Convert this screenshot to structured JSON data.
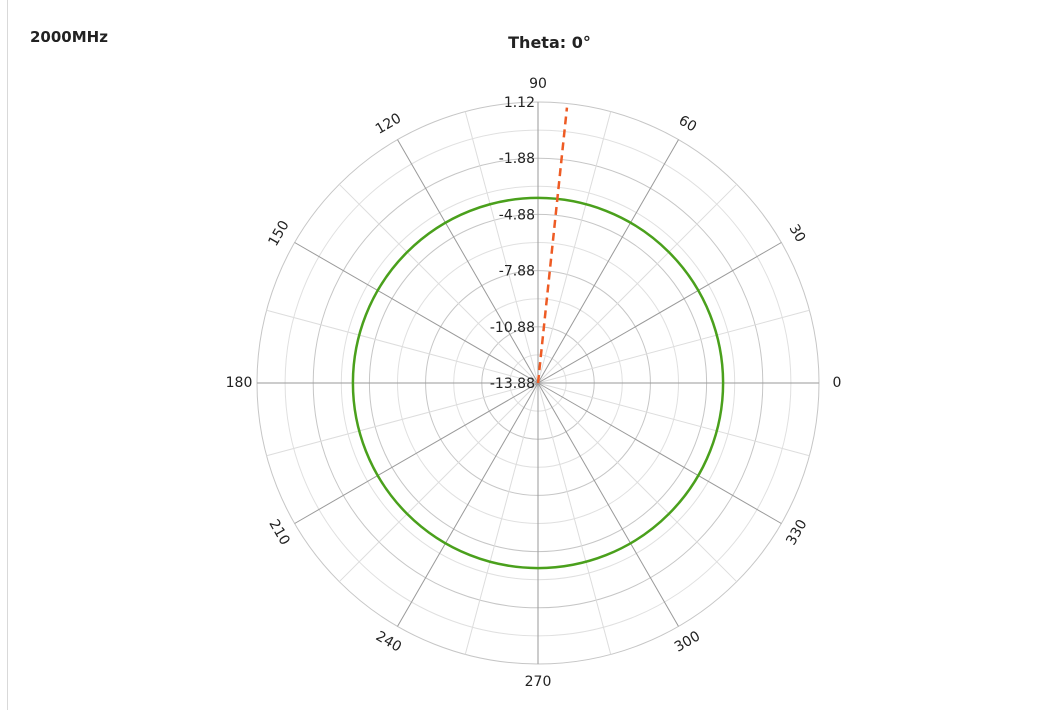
{
  "header": {
    "frequency": "2000MHz"
  },
  "chart_data": {
    "type": "polar-line",
    "title": "Theta: 0°",
    "angle_ticks": [
      {
        "angle": 0,
        "label": "0"
      },
      {
        "angle": 30,
        "label": "30"
      },
      {
        "angle": 60,
        "label": "60"
      },
      {
        "angle": 90,
        "label": "90"
      },
      {
        "angle": 120,
        "label": "120"
      },
      {
        "angle": 150,
        "label": "150"
      },
      {
        "angle": 180,
        "label": "180"
      },
      {
        "angle": 210,
        "label": "210"
      },
      {
        "angle": 240,
        "label": "240"
      },
      {
        "angle": 270,
        "label": "270"
      },
      {
        "angle": 300,
        "label": "300"
      },
      {
        "angle": 330,
        "label": "330"
      }
    ],
    "radial_ticks": [
      "-13.88",
      "-10.88",
      "-7.88",
      "-4.88",
      "-1.88",
      "1.12"
    ],
    "radial_range": [
      -13.88,
      1.12
    ],
    "grid": true,
    "series": [
      {
        "style": "solid",
        "color": "#4aa01c",
        "angles": [
          0,
          45,
          90,
          135,
          180,
          225,
          270,
          315,
          360
        ],
        "values": [
          -4.0,
          -4.0,
          -4.0,
          -4.0,
          -4.0,
          -4.0,
          -4.0,
          -4.0,
          -4.0
        ]
      },
      {
        "style": "dashed",
        "color": "#ee5b24",
        "angles": [
          84
        ],
        "values": [
          0.9
        ]
      }
    ]
  }
}
